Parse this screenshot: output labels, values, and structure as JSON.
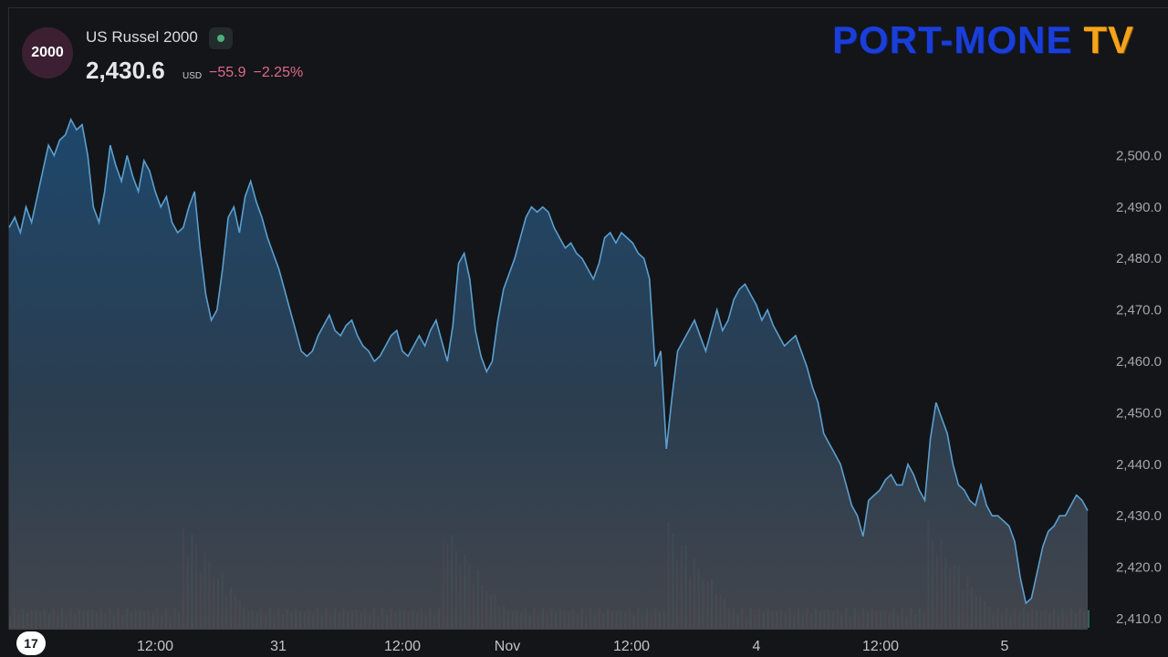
{
  "header": {
    "badge": "2000",
    "symbol": "US Russel 2000",
    "price": "2,430.6",
    "currency": "USD",
    "change_abs": "−55.9",
    "change_pct": "−2.25%"
  },
  "logo": {
    "text_main": "PORT-MONE",
    "text_tv": "TV"
  },
  "tv_logo": "17",
  "colors": {
    "background": "#131518",
    "line": "#5b9fd0",
    "negative": "#e0698a",
    "volume_up": "#3c7f6c",
    "volume_down": "#8a4552"
  },
  "chart_data": {
    "type": "area",
    "title": "",
    "xlabel": "",
    "ylabel": "",
    "ylim": [
      2408,
      2519
    ],
    "y_ticks": [
      "2,500.0",
      "2,490.0",
      "2,480.0",
      "2,470.0",
      "2,460.0",
      "2,450.0",
      "2,440.0",
      "2,430.0",
      "2,420.0",
      "2,410.0"
    ],
    "x_ticks": [
      "12:00",
      "31",
      "12:00",
      "Nov",
      "12:00",
      "4",
      "12:00",
      "5"
    ],
    "series": [
      {
        "values": [
          2486,
          2488,
          2485,
          2490,
          2487,
          2492,
          2497,
          2502,
          2500,
          2503,
          2504,
          2507,
          2505,
          2506,
          2500,
          2490,
          2487,
          2493,
          2502,
          2498,
          2495,
          2500,
          2496,
          2493,
          2499,
          2497,
          2493,
          2490,
          2492,
          2487,
          2485,
          2486,
          2490,
          2493,
          2482,
          2473,
          2468,
          2470,
          2478,
          2488,
          2490,
          2485,
          2492,
          2495,
          2491,
          2488,
          2484,
          2481,
          2478,
          2474,
          2470,
          2466,
          2462,
          2461,
          2462,
          2465,
          2467,
          2469,
          2466,
          2465,
          2467,
          2468,
          2465,
          2463,
          2462,
          2460,
          2461,
          2463,
          2465,
          2466,
          2462,
          2461,
          2463,
          2465,
          2463,
          2466,
          2468,
          2464,
          2460,
          2467,
          2479,
          2481,
          2476,
          2466,
          2461,
          2458,
          2460,
          2468,
          2474,
          2477,
          2480,
          2484,
          2488,
          2490,
          2489,
          2490,
          2489,
          2486,
          2484,
          2482,
          2483,
          2481,
          2480,
          2478,
          2476,
          2479,
          2484,
          2485,
          2483,
          2485,
          2484,
          2483,
          2481,
          2480,
          2476,
          2459,
          2462,
          2443,
          2453,
          2462,
          2464,
          2466,
          2468,
          2465,
          2462,
          2466,
          2470,
          2466,
          2468,
          2472,
          2474,
          2475,
          2473,
          2471,
          2468,
          2470,
          2467,
          2465,
          2463,
          2464,
          2465,
          2462,
          2459,
          2455,
          2452,
          2446,
          2444,
          2442,
          2440,
          2436,
          2432,
          2430,
          2426,
          2433,
          2434,
          2435,
          2437,
          2438,
          2436,
          2436,
          2440,
          2438,
          2435,
          2433,
          2445,
          2452,
          2449,
          2446,
          2440,
          2436,
          2435,
          2433,
          2432,
          2436,
          2432,
          2430,
          2430,
          2429,
          2428,
          2425,
          2418,
          2413,
          2414,
          2419,
          2424,
          2427,
          2428,
          2430,
          2430,
          2432,
          2434,
          2433,
          2431
        ]
      }
    ]
  }
}
